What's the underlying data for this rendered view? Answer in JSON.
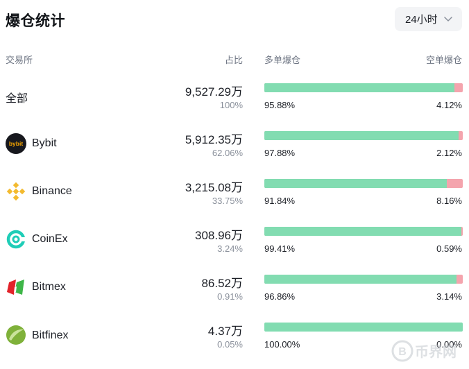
{
  "title": "爆仓统计",
  "period": {
    "selected": "24小时"
  },
  "headers": {
    "exchange": "交易所",
    "share": "占比",
    "long": "多单爆仓",
    "short": "空单爆仓"
  },
  "rows": [
    {
      "name": "全部",
      "icon": "none",
      "amount": "9,527.29万",
      "share": "100%",
      "long_pct": "95.88%",
      "short_pct": "4.12%",
      "long_ratio": 0.9588
    },
    {
      "name": "Bybit",
      "icon": "bybit-logo-icon",
      "amount": "5,912.35万",
      "share": "62.06%",
      "long_pct": "97.88%",
      "short_pct": "2.12%",
      "long_ratio": 0.9788
    },
    {
      "name": "Binance",
      "icon": "binance-logo-icon",
      "amount": "3,215.08万",
      "share": "33.75%",
      "long_pct": "91.84%",
      "short_pct": "8.16%",
      "long_ratio": 0.9184
    },
    {
      "name": "CoinEx",
      "icon": "coinex-logo-icon",
      "amount": "308.96万",
      "share": "3.24%",
      "long_pct": "99.41%",
      "short_pct": "0.59%",
      "long_ratio": 0.9941
    },
    {
      "name": "Bitmex",
      "icon": "bitmex-logo-icon",
      "amount": "86.52万",
      "share": "0.91%",
      "long_pct": "96.86%",
      "short_pct": "3.14%",
      "long_ratio": 0.9686
    },
    {
      "name": "Bitfinex",
      "icon": "bitfinex-logo-icon",
      "amount": "4.37万",
      "share": "0.05%",
      "long_pct": "100.00%",
      "short_pct": "0.00%",
      "long_ratio": 1.0
    }
  ],
  "colors": {
    "long": "#82dcb1",
    "short": "#f4a4ad",
    "muted": "#8a909b"
  },
  "watermark": "币界网"
}
